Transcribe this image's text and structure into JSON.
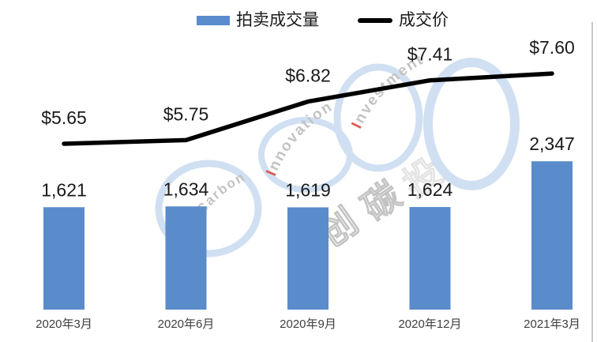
{
  "chart_data": {
    "type": "bar",
    "subtype": "bar-line-combo",
    "title": "",
    "categories": [
      "2020年3月",
      "2020年6月",
      "2020年9月",
      "2020年12月",
      "2021年3月"
    ],
    "series": [
      {
        "name": "拍卖成交量",
        "type": "bar",
        "color": "#5A8CCB",
        "values": [
          1621,
          1634,
          1619,
          1624,
          2347
        ],
        "labels": [
          "1,621",
          "1,634",
          "1,619",
          "1,624",
          "2,347"
        ]
      },
      {
        "name": "成交价",
        "type": "line",
        "color": "#000000",
        "values": [
          5.65,
          5.75,
          6.82,
          7.41,
          7.6
        ],
        "labels": [
          "$5.65",
          "$5.75",
          "$6.82",
          "$7.41",
          "$7.60"
        ]
      }
    ],
    "legend_position": "top-center",
    "grid": false,
    "data_labels": true,
    "bar_axis_range": [
      0,
      2600
    ],
    "line_axis_range": [
      5.2,
      8.3
    ],
    "label_color": "#1a1a1a",
    "axis_label_color": "#3f3f3f"
  },
  "watermark": {
    "arc_texts": [
      "oCarbon",
      "Innovation",
      "Investment"
    ],
    "cn_chars": [
      "创",
      "碳",
      "投"
    ],
    "ring_color": "#D0E0F2",
    "text_color": "#C3C3C3",
    "accent_color": "#DC5B52"
  }
}
